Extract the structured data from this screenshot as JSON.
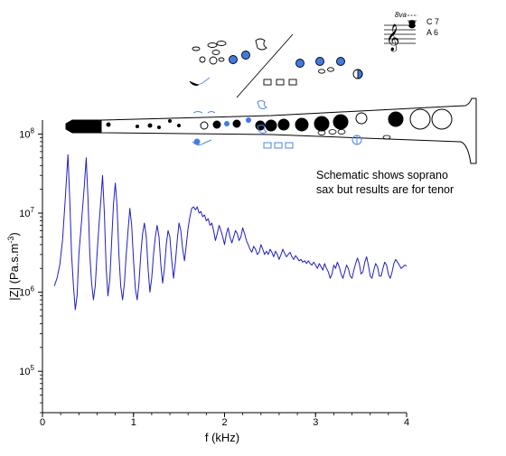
{
  "chart_data": {
    "type": "line",
    "xlabel": "f (kHz)",
    "ylabel_parts": [
      "|Z| (Pa.s.m",
      "-3",
      ")"
    ],
    "xlim": [
      0,
      4
    ],
    "ylim": [
      30000,
      150000000
    ],
    "y_scale": "log",
    "x_ticks": [
      0,
      1,
      2,
      3,
      4
    ],
    "x_tick_labels": [
      "0",
      "1",
      "2",
      "3",
      "4"
    ],
    "y_ticks": [
      100000,
      1000000,
      10000000,
      100000000
    ],
    "y_tick_labels": [
      {
        "base": "10",
        "exp": "5"
      },
      {
        "base": "10",
        "exp": "6"
      },
      {
        "base": "10",
        "exp": "7"
      },
      {
        "base": "10",
        "exp": "8"
      }
    ],
    "grid": false,
    "line_color": "#1f1fc8",
    "series": [
      {
        "points": [
          [
            0.13,
            1200000.0
          ],
          [
            0.16,
            1500000.0
          ],
          [
            0.19,
            2200000.0
          ],
          [
            0.22,
            4500000.0
          ],
          [
            0.25,
            15000000.0
          ],
          [
            0.28,
            55000000.0
          ],
          [
            0.3,
            15000000.0
          ],
          [
            0.32,
            3000000.0
          ],
          [
            0.34,
            1200000.0
          ],
          [
            0.36,
            600000.0
          ],
          [
            0.38,
            900000.0
          ],
          [
            0.4,
            3000000.0
          ],
          [
            0.43,
            8000000.0
          ],
          [
            0.46,
            22000000.0
          ],
          [
            0.48,
            50000000.0
          ],
          [
            0.5,
            15000000.0
          ],
          [
            0.52,
            3000000.0
          ],
          [
            0.54,
            1300000.0
          ],
          [
            0.56,
            800000.0
          ],
          [
            0.58,
            1200000.0
          ],
          [
            0.6,
            3000000.0
          ],
          [
            0.62,
            7000000.0
          ],
          [
            0.64,
            14000000.0
          ],
          [
            0.66,
            30000000.0
          ],
          [
            0.68,
            10000000.0
          ],
          [
            0.7,
            2000000.0
          ],
          [
            0.72,
            900000.0
          ],
          [
            0.74,
            1500000.0
          ],
          [
            0.76,
            4500000.0
          ],
          [
            0.78,
            13000000.0
          ],
          [
            0.8,
            24000000.0
          ],
          [
            0.82,
            12000000.0
          ],
          [
            0.84,
            3000000.0
          ],
          [
            0.86,
            1200000.0
          ],
          [
            0.88,
            800000.0
          ],
          [
            0.9,
            1300000.0
          ],
          [
            0.92,
            3000000.0
          ],
          [
            0.94,
            6000000.0
          ],
          [
            0.96,
            11500000.0
          ],
          [
            0.98,
            7000000.0
          ],
          [
            1.0,
            2500000.0
          ],
          [
            1.02,
            1100000.0
          ],
          [
            1.04,
            800000.0
          ],
          [
            1.06,
            1300000.0
          ],
          [
            1.08,
            3000000.0
          ],
          [
            1.1,
            5500000.0
          ],
          [
            1.12,
            7500000.0
          ],
          [
            1.14,
            5000000.0
          ],
          [
            1.16,
            2000000.0
          ],
          [
            1.18,
            1000000.0
          ],
          [
            1.2,
            1500000.0
          ],
          [
            1.22,
            3000000.0
          ],
          [
            1.24,
            5000000.0
          ],
          [
            1.26,
            7000000.0
          ],
          [
            1.28,
            5000000.0
          ],
          [
            1.3,
            2200000.0
          ],
          [
            1.32,
            1300000.0
          ],
          [
            1.34,
            2000000.0
          ],
          [
            1.36,
            4000000.0
          ],
          [
            1.38,
            6000000.0
          ],
          [
            1.4,
            5000000.0
          ],
          [
            1.42,
            2500000.0
          ],
          [
            1.44,
            1500000.0
          ],
          [
            1.46,
            2400000.0
          ],
          [
            1.48,
            4500000.0
          ],
          [
            1.5,
            7500000.0
          ],
          [
            1.52,
            6000000.0
          ],
          [
            1.54,
            3500000.0
          ],
          [
            1.56,
            2500000.0
          ],
          [
            1.58,
            4000000.0
          ],
          [
            1.6,
            6500000.0
          ],
          [
            1.62,
            9000000.0
          ],
          [
            1.64,
            11500000.0
          ],
          [
            1.66,
            12000000.0
          ],
          [
            1.68,
            11000000.0
          ],
          [
            1.7,
            12000000.0
          ],
          [
            1.72,
            10000000.0
          ],
          [
            1.74,
            10500000.0
          ],
          [
            1.76,
            9000000.0
          ],
          [
            1.78,
            9500000.0
          ],
          [
            1.8,
            8000000.0
          ],
          [
            1.82,
            8500000.0
          ],
          [
            1.84,
            7000000.0
          ],
          [
            1.86,
            7500000.0
          ],
          [
            1.88,
            6000000.0
          ],
          [
            1.9,
            4500000.0
          ],
          [
            1.92,
            5500000.0
          ],
          [
            1.94,
            7000000.0
          ],
          [
            1.96,
            6000000.0
          ],
          [
            1.98,
            5000000.0
          ],
          [
            2.0,
            4000000.0
          ],
          [
            2.02,
            5500000.0
          ],
          [
            2.04,
            6500000.0
          ],
          [
            2.06,
            5000000.0
          ],
          [
            2.08,
            4200000.0
          ],
          [
            2.1,
            5000000.0
          ],
          [
            2.12,
            6000000.0
          ],
          [
            2.14,
            5500000.0
          ],
          [
            2.16,
            4500000.0
          ],
          [
            2.18,
            5000000.0
          ],
          [
            2.2,
            6500000.0
          ],
          [
            2.22,
            5500000.0
          ],
          [
            2.24,
            4500000.0
          ],
          [
            2.26,
            4000000.0
          ],
          [
            2.28,
            3500000.0
          ],
          [
            2.3,
            3200000.0
          ],
          [
            2.32,
            3800000.0
          ],
          [
            2.34,
            3500000.0
          ],
          [
            2.36,
            3000000.0
          ],
          [
            2.38,
            3200000.0
          ],
          [
            2.4,
            4000000.0
          ],
          [
            2.42,
            3500000.0
          ],
          [
            2.44,
            3000000.0
          ],
          [
            2.46,
            3300000.0
          ],
          [
            2.48,
            3000000.0
          ],
          [
            2.5,
            3500000.0
          ],
          [
            2.52,
            3200000.0
          ],
          [
            2.54,
            2800000.0
          ],
          [
            2.56,
            3300000.0
          ],
          [
            2.58,
            3000000.0
          ],
          [
            2.6,
            2600000.0
          ],
          [
            2.62,
            3000000.0
          ],
          [
            2.64,
            3500000.0
          ],
          [
            2.66,
            3100000.0
          ],
          [
            2.68,
            2800000.0
          ],
          [
            2.7,
            3000000.0
          ],
          [
            2.72,
            3200000.0
          ],
          [
            2.74,
            2800000.0
          ],
          [
            2.76,
            2600000.0
          ],
          [
            2.78,
            2900000.0
          ],
          [
            2.8,
            2700000.0
          ],
          [
            2.82,
            2500000.0
          ],
          [
            2.84,
            2600000.0
          ],
          [
            2.86,
            2400000.0
          ],
          [
            2.88,
            2500000.0
          ],
          [
            2.9,
            2300000.0
          ],
          [
            2.92,
            2500000.0
          ],
          [
            2.94,
            2300000.0
          ],
          [
            2.96,
            2200000.0
          ],
          [
            2.98,
            2400000.0
          ],
          [
            3.0,
            2200000.0
          ],
          [
            3.02,
            2000000.0
          ],
          [
            3.04,
            2300000.0
          ],
          [
            3.06,
            2100000.0
          ],
          [
            3.08,
            1900000.0
          ],
          [
            3.1,
            2300000.0
          ],
          [
            3.12,
            2000000.0
          ],
          [
            3.14,
            1800000.0
          ],
          [
            3.16,
            1500000.0
          ],
          [
            3.18,
            1700000.0
          ],
          [
            3.2,
            2200000.0
          ],
          [
            3.22,
            2000000.0
          ],
          [
            3.24,
            2400000.0
          ],
          [
            3.26,
            2100000.0
          ],
          [
            3.28,
            1700000.0
          ],
          [
            3.3,
            1500000.0
          ],
          [
            3.32,
            1800000.0
          ],
          [
            3.34,
            2200000.0
          ],
          [
            3.36,
            2000000.0
          ],
          [
            3.38,
            1600000.0
          ],
          [
            3.4,
            1500000.0
          ],
          [
            3.42,
            1900000.0
          ],
          [
            3.44,
            2300000.0
          ],
          [
            3.46,
            2700000.0
          ],
          [
            3.48,
            2300000.0
          ],
          [
            3.5,
            1700000.0
          ],
          [
            3.52,
            1800000.0
          ],
          [
            3.54,
            2400000.0
          ],
          [
            3.56,
            2800000.0
          ],
          [
            3.58,
            2200000.0
          ],
          [
            3.6,
            1600000.0
          ],
          [
            3.62,
            1500000.0
          ],
          [
            3.64,
            1900000.0
          ],
          [
            3.66,
            2300000.0
          ],
          [
            3.68,
            2100000.0
          ],
          [
            3.7,
            1600000.0
          ],
          [
            3.72,
            1600000.0
          ],
          [
            3.74,
            2000000.0
          ],
          [
            3.76,
            2400000.0
          ],
          [
            3.78,
            2200000.0
          ],
          [
            3.8,
            1700000.0
          ],
          [
            3.82,
            1500000.0
          ],
          [
            3.84,
            1800000.0
          ],
          [
            3.86,
            2300000.0
          ],
          [
            3.88,
            2600000.0
          ],
          [
            3.9,
            2400000.0
          ],
          [
            3.92,
            2200000.0
          ],
          [
            3.94,
            2000000.0
          ],
          [
            3.96,
            2100000.0
          ],
          [
            3.98,
            2200000.0
          ],
          [
            4.0,
            2150000.0
          ]
        ]
      }
    ]
  },
  "annotation": {
    "line1": "Schematic shows soprano",
    "line2": "sax but results are for tenor"
  },
  "staff": {
    "ottava": "8va",
    "note_high": "C 7",
    "note_low": "A 6"
  },
  "colors": {
    "key_blue": "#3d7be8",
    "key_outline_blue": "#4a86e8",
    "body": "#000000"
  }
}
